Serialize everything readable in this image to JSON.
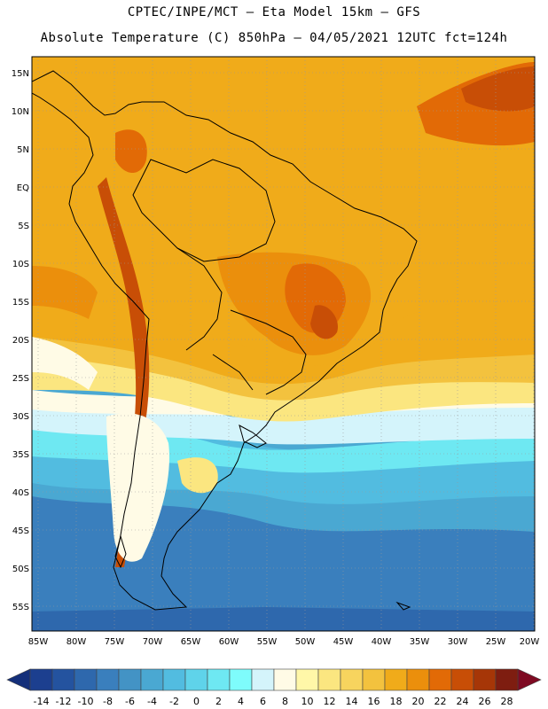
{
  "header": {
    "line1": "CPTEC/INPE/MCT –  Eta Model 15km – GFS",
    "line2": "Absolute Temperature (C) 850hPa – 04/05/2021 12UTC fct=124h"
  },
  "map": {
    "lat_labels": [
      "15N",
      "10N",
      "5N",
      "EQ",
      "5S",
      "10S",
      "15S",
      "20S",
      "25S",
      "30S",
      "35S",
      "40S",
      "45S",
      "50S",
      "55S"
    ],
    "lon_labels": [
      "85W",
      "80W",
      "75W",
      "70W",
      "65W",
      "60W",
      "55W",
      "50W",
      "45W",
      "40W",
      "35W",
      "30W",
      "25W",
      "20W"
    ]
  },
  "colorbar": {
    "labels": [
      "-14",
      "-12",
      "-10",
      "-8",
      "-6",
      "-4",
      "-2",
      "0",
      "2",
      "4",
      "6",
      "8",
      "10",
      "12",
      "14",
      "16",
      "18",
      "20",
      "22",
      "24",
      "26",
      "28"
    ],
    "colors": [
      "#1c3f8f",
      "#24539f",
      "#2e68ad",
      "#3a7fbd",
      "#4393c5",
      "#4aa8d2",
      "#52bce0",
      "#5fd3ea",
      "#6ee8f2",
      "#7efcfc",
      "#d4f4fb",
      "#fffbe6",
      "#fff7a8",
      "#fbe680",
      "#f7d45e",
      "#f3c23e",
      "#f0ab1a",
      "#eb8f0c",
      "#e26a06",
      "#c84e06",
      "#a63607",
      "#7e1d10"
    ],
    "end_left": "#142f7a",
    "end_right": "#7e0a22"
  }
}
